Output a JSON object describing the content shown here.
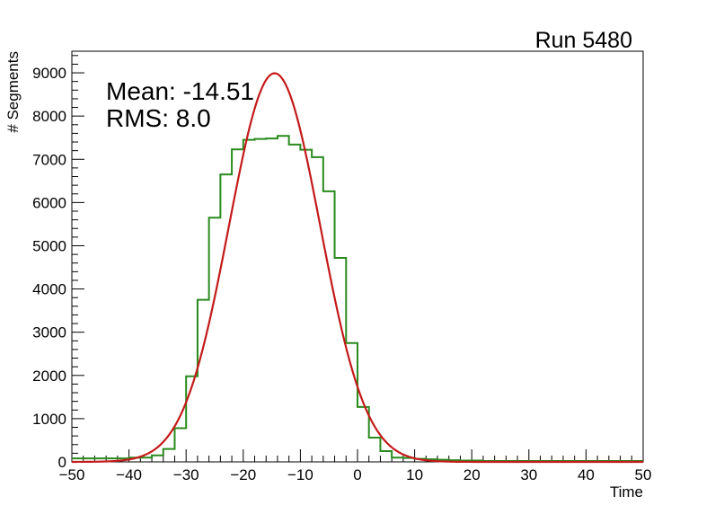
{
  "chart_data": {
    "type": "histogram",
    "title": "Run 5480",
    "xlabel": "Time",
    "ylabel": "# Segments",
    "xlim": [
      -50,
      50
    ],
    "ylim": [
      0,
      9500
    ],
    "x_ticks": [
      -50,
      -40,
      -30,
      -20,
      -10,
      0,
      10,
      20,
      30,
      40,
      50
    ],
    "x_tick_labels": [
      "−50",
      "−40",
      "−30",
      "−20",
      "−10",
      "0",
      "10",
      "20",
      "30",
      "40",
      "50"
    ],
    "y_ticks": [
      0,
      1000,
      2000,
      3000,
      4000,
      5000,
      6000,
      7000,
      8000,
      9000
    ],
    "y_tick_labels": [
      "0",
      "1000",
      "2000",
      "3000",
      "4000",
      "5000",
      "6000",
      "7000",
      "8000",
      "9000"
    ],
    "annotations": {
      "mean": "Mean: -14.51",
      "rms": "RMS:  8.0"
    },
    "histogram": {
      "name": "segments",
      "color": "#2a8a1e",
      "bin_width": 2,
      "bin_edges_start": -50,
      "values": [
        80,
        80,
        80,
        80,
        80,
        100,
        100,
        150,
        300,
        780,
        1980,
        3750,
        5650,
        6650,
        7230,
        7450,
        7470,
        7480,
        7540,
        7340,
        7220,
        7050,
        6260,
        4720,
        2750,
        1270,
        560,
        250,
        100,
        90,
        70,
        60,
        50,
        40,
        30,
        30,
        20,
        20,
        20,
        20,
        20,
        20,
        20,
        20,
        20,
        20,
        20,
        20,
        20,
        20
      ]
    },
    "fit": {
      "name": "gaussian-fit",
      "type": "gaussian",
      "color": "#c41a1a",
      "amplitude": 8990,
      "mean": -14.51,
      "sigma": 8.0
    }
  }
}
